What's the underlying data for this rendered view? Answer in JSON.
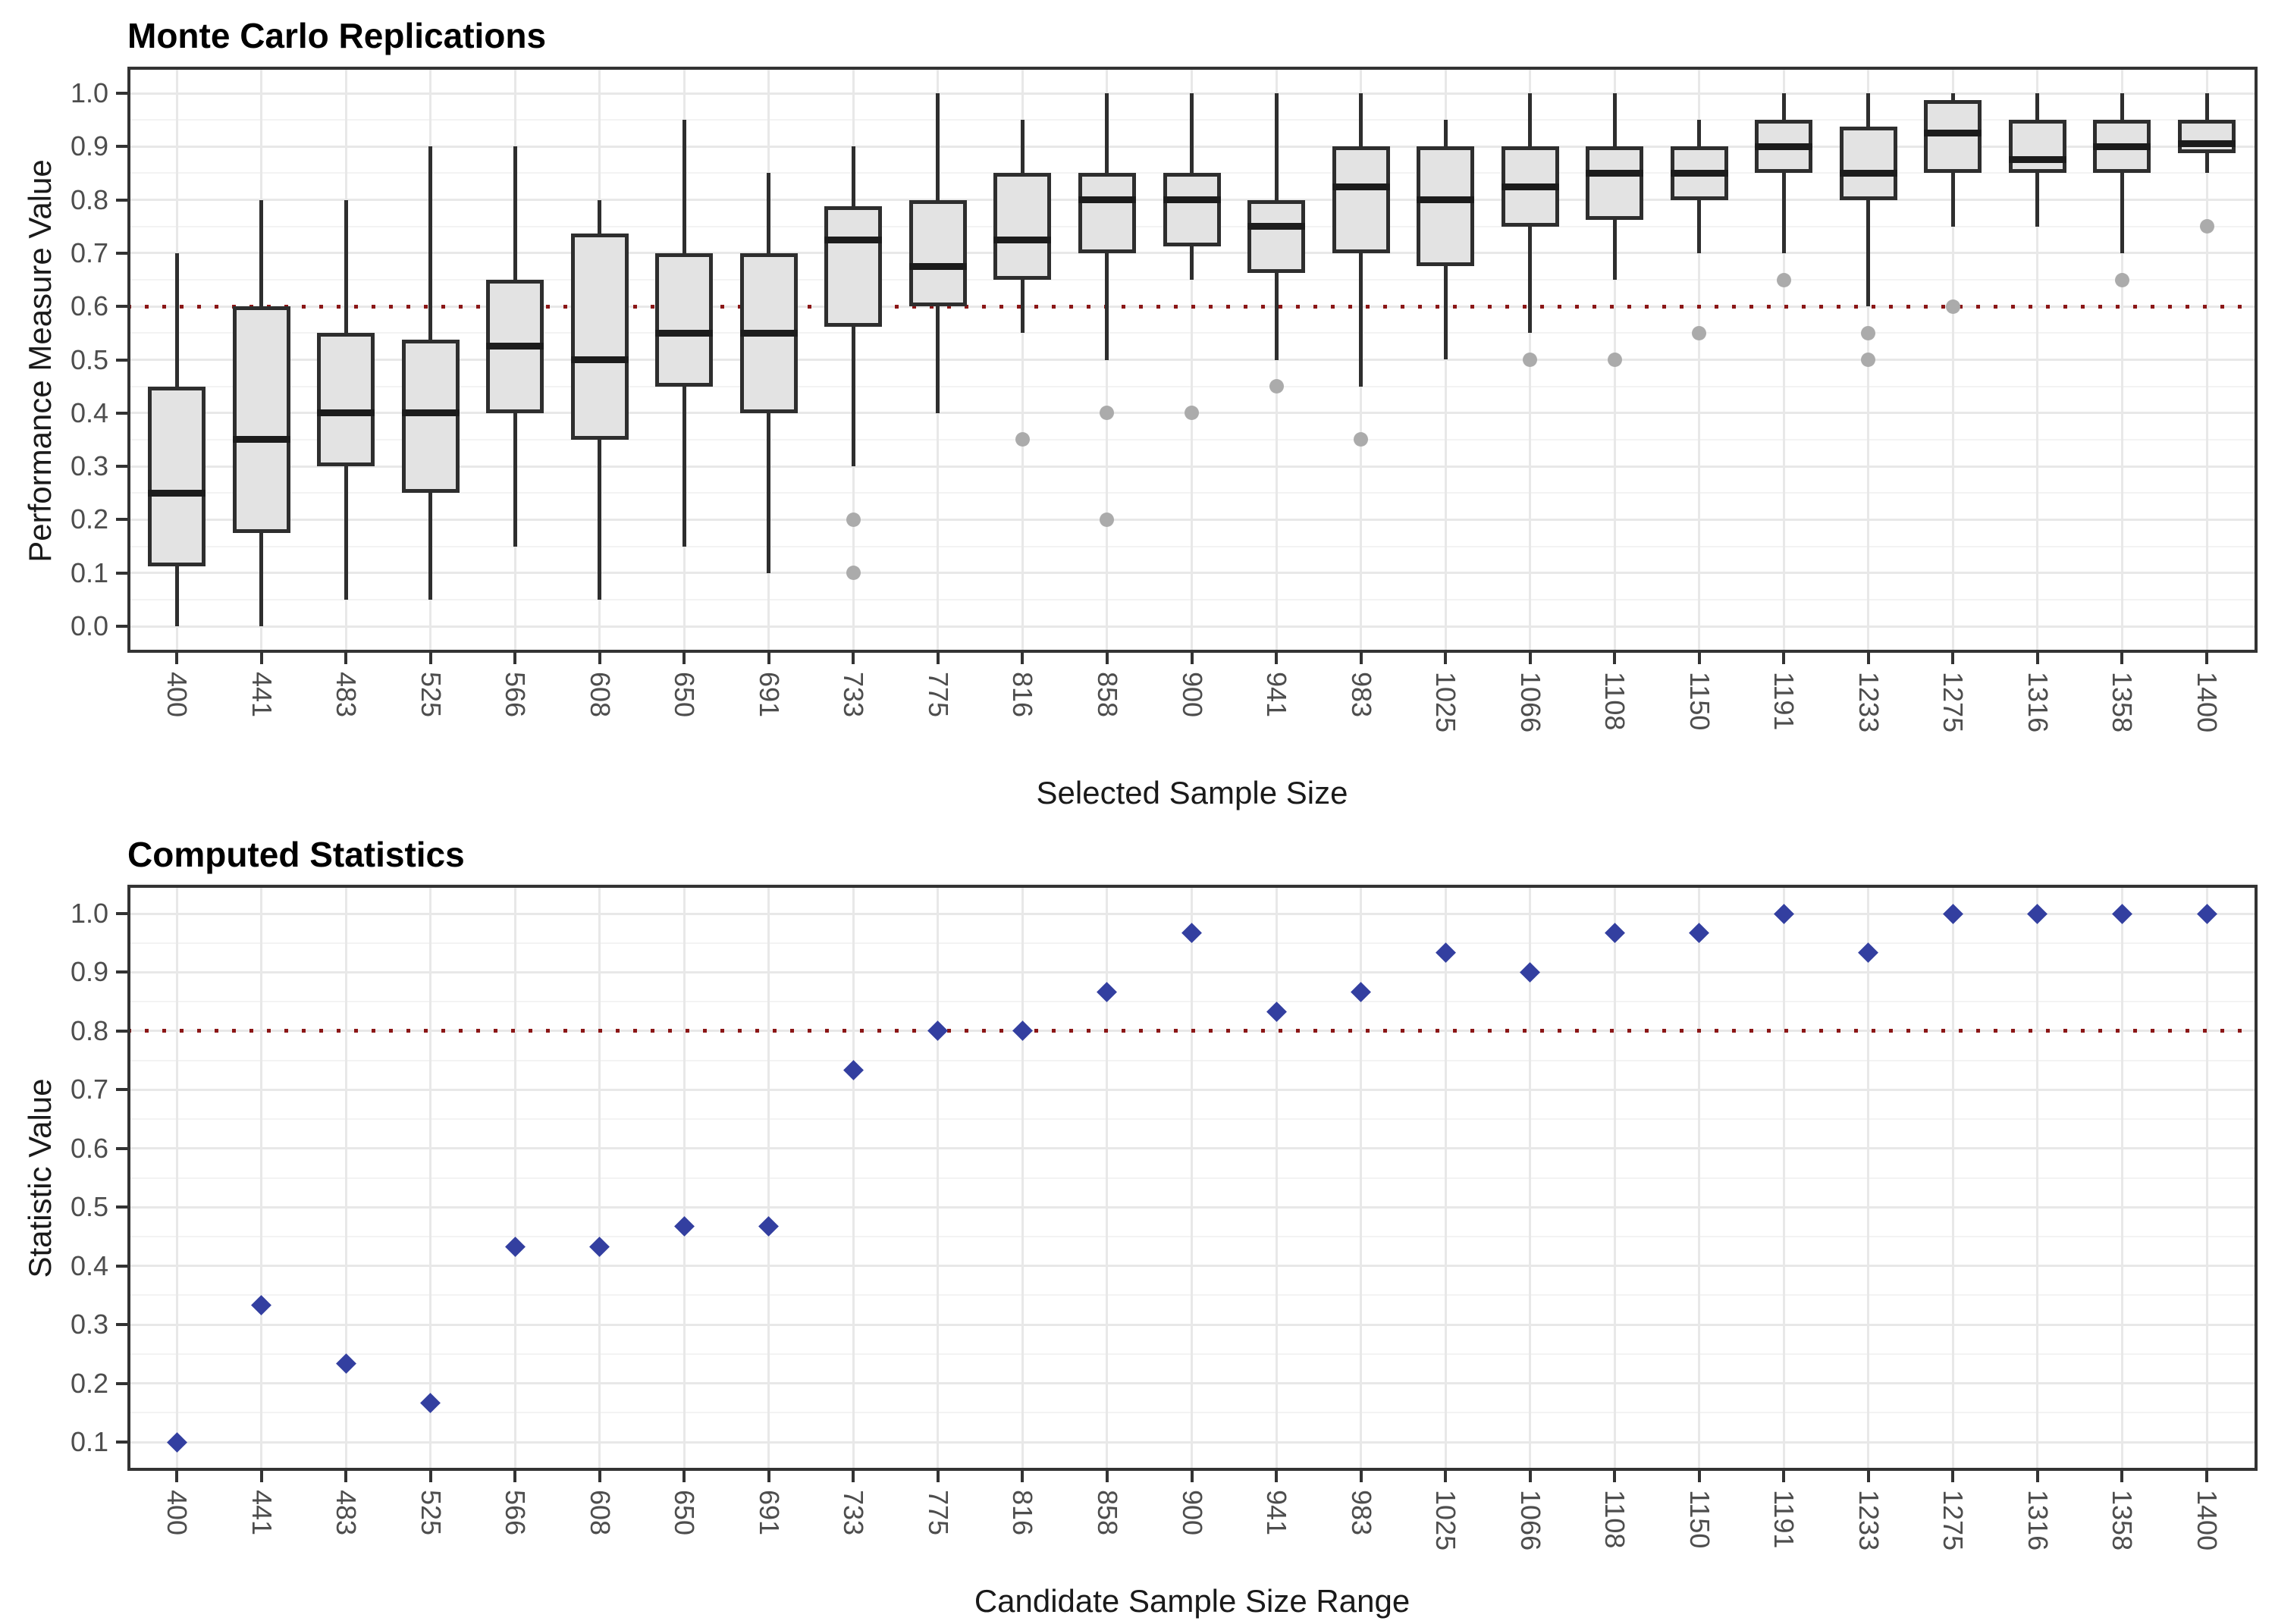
{
  "figure": {
    "background": "#FFFFFF",
    "colors": {
      "box_fill": "#E3E3E3",
      "box_border": "#2E2E2E",
      "whisker": "#2E2E2E",
      "median": "#1C1C1C",
      "outlier": "#ABABAB",
      "reference_line": "#8B1616",
      "marker": "#333FA0",
      "grid_major": "#E8E8E8",
      "grid_minor": "#F3F3F3",
      "axis": "#333333",
      "tick_text": "#4D4D4D"
    }
  },
  "chart_data": [
    {
      "type": "boxplot",
      "title": "Monte Carlo Replications",
      "xlabel": "Selected Sample Size",
      "ylabel": "Performance Measure Value",
      "categories": [
        400,
        441,
        483,
        525,
        566,
        608,
        650,
        691,
        733,
        775,
        816,
        858,
        900,
        941,
        983,
        1025,
        1066,
        1108,
        1150,
        1191,
        1233,
        1275,
        1316,
        1358,
        1400
      ],
      "y_ticks": [
        0.0,
        0.1,
        0.2,
        0.3,
        0.4,
        0.5,
        0.6,
        0.7,
        0.8,
        0.9,
        1.0
      ],
      "ylim": [
        -0.05,
        1.05
      ],
      "grid": "major and minor horizontal, major vertical at categories",
      "legend": "none",
      "reference_line": {
        "y": 0.6,
        "style": "dotted",
        "color": "#8B1616"
      },
      "boxes": [
        {
          "x": 400,
          "min": 0.0,
          "q1": 0.1125,
          "median": 0.25,
          "q3": 0.45,
          "max": 0.7,
          "outliers": []
        },
        {
          "x": 441,
          "min": 0.0,
          "q1": 0.175,
          "median": 0.35,
          "q3": 0.6,
          "max": 0.8,
          "outliers": []
        },
        {
          "x": 483,
          "min": 0.05,
          "q1": 0.3,
          "median": 0.4,
          "q3": 0.55,
          "max": 0.8,
          "outliers": []
        },
        {
          "x": 525,
          "min": 0.05,
          "q1": 0.25,
          "median": 0.4,
          "q3": 0.5375,
          "max": 0.9,
          "outliers": []
        },
        {
          "x": 566,
          "min": 0.15,
          "q1": 0.4,
          "median": 0.525,
          "q3": 0.65,
          "max": 0.9,
          "outliers": []
        },
        {
          "x": 608,
          "min": 0.05,
          "q1": 0.35,
          "median": 0.5,
          "q3": 0.7375,
          "max": 0.8,
          "outliers": []
        },
        {
          "x": 650,
          "min": 0.15,
          "q1": 0.45,
          "median": 0.55,
          "q3": 0.7,
          "max": 0.95,
          "outliers": []
        },
        {
          "x": 691,
          "min": 0.1,
          "q1": 0.4,
          "median": 0.55,
          "q3": 0.7,
          "max": 0.85,
          "outliers": []
        },
        {
          "x": 733,
          "min": 0.3,
          "q1": 0.5625,
          "median": 0.725,
          "q3": 0.7875,
          "max": 0.9,
          "outliers": [
            0.2,
            0.1
          ]
        },
        {
          "x": 775,
          "min": 0.4,
          "q1": 0.6,
          "median": 0.675,
          "q3": 0.8,
          "max": 1.0,
          "outliers": []
        },
        {
          "x": 816,
          "min": 0.55,
          "q1": 0.65,
          "median": 0.725,
          "q3": 0.85,
          "max": 0.95,
          "outliers": [
            0.35
          ]
        },
        {
          "x": 858,
          "min": 0.5,
          "q1": 0.7,
          "median": 0.8,
          "q3": 0.85,
          "max": 1.0,
          "outliers": [
            0.4,
            0.2
          ]
        },
        {
          "x": 900,
          "min": 0.65,
          "q1": 0.7125,
          "median": 0.8,
          "q3": 0.85,
          "max": 1.0,
          "outliers": [
            0.4
          ]
        },
        {
          "x": 941,
          "min": 0.5,
          "q1": 0.6625,
          "median": 0.75,
          "q3": 0.8,
          "max": 1.0,
          "outliers": [
            0.45
          ]
        },
        {
          "x": 983,
          "min": 0.45,
          "q1": 0.7,
          "median": 0.825,
          "q3": 0.9,
          "max": 1.0,
          "outliers": [
            0.35
          ]
        },
        {
          "x": 1025,
          "min": 0.5,
          "q1": 0.675,
          "median": 0.8,
          "q3": 0.9,
          "max": 0.95,
          "outliers": []
        },
        {
          "x": 1066,
          "min": 0.55,
          "q1": 0.75,
          "median": 0.825,
          "q3": 0.9,
          "max": 1.0,
          "outliers": [
            0.5
          ]
        },
        {
          "x": 1108,
          "min": 0.65,
          "q1": 0.7625,
          "median": 0.85,
          "q3": 0.9,
          "max": 1.0,
          "outliers": [
            0.5
          ]
        },
        {
          "x": 1150,
          "min": 0.7,
          "q1": 0.8,
          "median": 0.85,
          "q3": 0.9,
          "max": 0.95,
          "outliers": [
            0.55
          ]
        },
        {
          "x": 1191,
          "min": 0.7,
          "q1": 0.85,
          "median": 0.9,
          "q3": 0.95,
          "max": 1.0,
          "outliers": [
            0.65
          ]
        },
        {
          "x": 1233,
          "min": 0.6,
          "q1": 0.8,
          "median": 0.85,
          "q3": 0.9375,
          "max": 1.0,
          "outliers": [
            0.55,
            0.5
          ]
        },
        {
          "x": 1275,
          "min": 0.75,
          "q1": 0.85,
          "median": 0.925,
          "q3": 0.9875,
          "max": 1.0,
          "outliers": [
            0.6
          ]
        },
        {
          "x": 1316,
          "min": 0.75,
          "q1": 0.85,
          "median": 0.875,
          "q3": 0.95,
          "max": 1.0,
          "outliers": []
        },
        {
          "x": 1358,
          "min": 0.7,
          "q1": 0.85,
          "median": 0.9,
          "q3": 0.95,
          "max": 1.0,
          "outliers": [
            0.65
          ]
        },
        {
          "x": 1400,
          "min": 0.85,
          "q1": 0.8875,
          "median": 0.905,
          "q3": 0.95,
          "max": 1.0,
          "outliers": [
            0.75
          ]
        }
      ]
    },
    {
      "type": "scatter",
      "title": "Computed Statistics",
      "xlabel": "Candidate Sample Size Range",
      "ylabel": "Statistic Value",
      "categories": [
        400,
        441,
        483,
        525,
        566,
        608,
        650,
        691,
        733,
        775,
        816,
        858,
        900,
        941,
        983,
        1025,
        1066,
        1108,
        1150,
        1191,
        1233,
        1275,
        1316,
        1358,
        1400
      ],
      "y_ticks": [
        0.1,
        0.2,
        0.3,
        0.4,
        0.5,
        0.6,
        0.7,
        0.8,
        0.9,
        1.0
      ],
      "ylim": [
        0.05,
        1.05
      ],
      "grid": "major and minor horizontal, major vertical at categories",
      "legend": "none",
      "marker": "diamond",
      "reference_line": {
        "y": 0.8,
        "style": "dotted",
        "color": "#8B1616"
      },
      "values": [
        0.1,
        0.333,
        0.233,
        0.167,
        0.433,
        0.433,
        0.467,
        0.467,
        0.733,
        0.8,
        0.8,
        0.867,
        0.967,
        0.833,
        0.867,
        0.933,
        0.9,
        0.967,
        0.967,
        1.0,
        0.933,
        1.0,
        1.0,
        1.0,
        1.0
      ]
    }
  ]
}
